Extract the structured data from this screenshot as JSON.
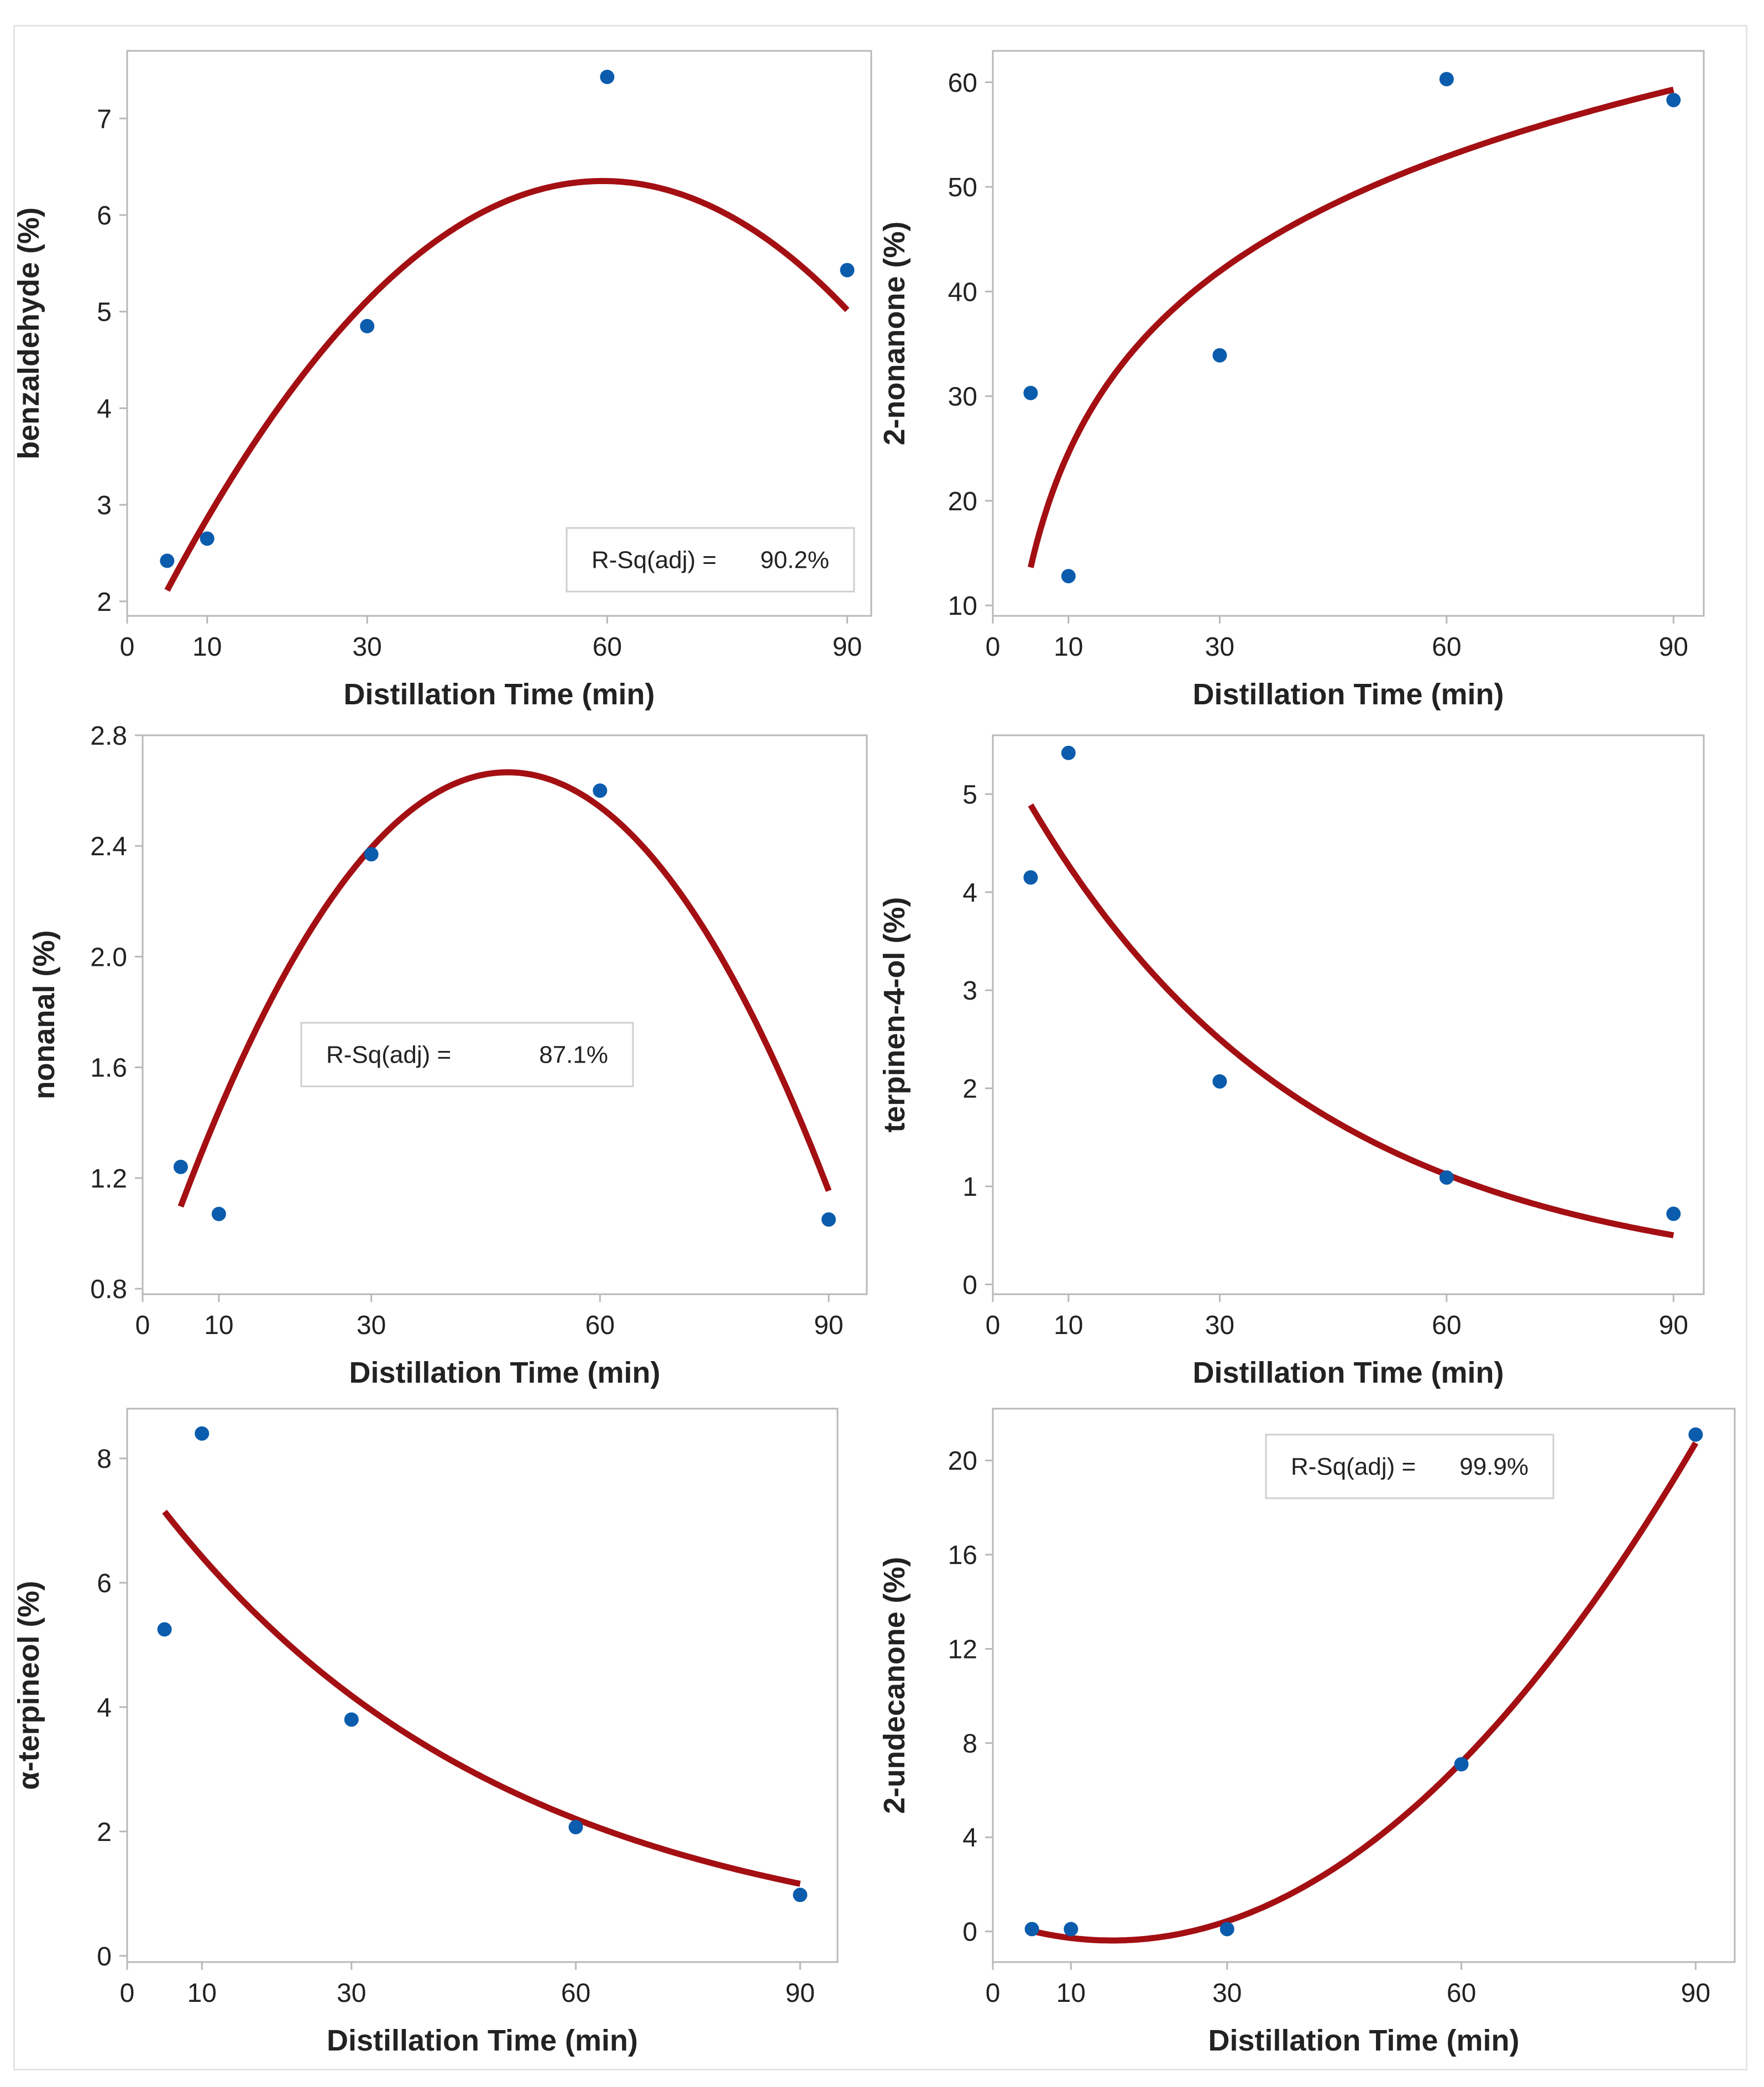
{
  "colors": {
    "fit_line": "#a30f12",
    "points": "#0b5cad",
    "axes": "#b8b8b8",
    "text": "#222222"
  },
  "chart_data": [
    {
      "type": "scatter",
      "title": "",
      "xlabel": "Distillation Time (min)",
      "ylabel": "benzaldehyde (%)",
      "xticks": [
        0,
        10,
        30,
        60,
        90
      ],
      "yticks": [
        2,
        3,
        4,
        5,
        6,
        7
      ],
      "xlim": [
        0,
        93
      ],
      "ylim": [
        1.85,
        7.7
      ],
      "points": {
        "x": [
          5,
          10,
          30,
          60,
          90
        ],
        "y": [
          2.42,
          2.65,
          4.85,
          7.43,
          5.43
        ]
      },
      "fit": {
        "model": "quadratic",
        "coef": [
          1.3,
          0.17,
          -0.00143
        ],
        "x_range": [
          5,
          90
        ]
      },
      "annotation": {
        "label": "R-Sq(adj) =",
        "value": "90.2%"
      }
    },
    {
      "type": "scatter",
      "title": "",
      "xlabel": "Distillation Time (min)",
      "ylabel": "2-nonanone (%)",
      "xticks": [
        0,
        10,
        30,
        60,
        90
      ],
      "yticks": [
        10,
        20,
        30,
        40,
        50,
        60
      ],
      "xlim": [
        0,
        94
      ],
      "ylim": [
        9,
        63
      ],
      "points": {
        "x": [
          5,
          10,
          30,
          60,
          90
        ],
        "y": [
          30.3,
          12.8,
          33.9,
          60.3,
          58.3
        ]
      },
      "fit": {
        "model": "logarithmic",
        "coef": [
          -11.8,
          15.8
        ],
        "x_range": [
          5,
          90
        ]
      },
      "annotation": null
    },
    {
      "type": "scatter",
      "title": "",
      "xlabel": "Distillation Time (min)",
      "ylabel": "nonanal (%)",
      "xticks": [
        0,
        10,
        30,
        60,
        90
      ],
      "yticks": [
        0.8,
        1.2,
        1.6,
        2.0,
        2.4,
        2.8
      ],
      "ytick_labels": [
        "0.8",
        "1.2",
        "1.6",
        "2.0",
        "2.4",
        "2.8"
      ],
      "xlim": [
        0,
        95
      ],
      "ylim": [
        0.78,
        2.8
      ],
      "points": {
        "x": [
          5,
          10,
          30,
          60,
          90
        ],
        "y": [
          1.24,
          1.07,
          2.37,
          2.6,
          1.05
        ]
      },
      "fit": {
        "model": "quadratic",
        "coef": [
          0.71,
          0.0817,
          -0.000853
        ],
        "x_range": [
          5,
          90
        ]
      },
      "annotation": {
        "label": "R-Sq(adj) =",
        "value": "87.1%"
      }
    },
    {
      "type": "scatter",
      "title": "",
      "xlabel": "Distillation Time (min)",
      "ylabel": "terpinen-4-ol (%)",
      "xticks": [
        0,
        10,
        30,
        60,
        90
      ],
      "yticks": [
        0,
        1,
        2,
        3,
        4,
        5
      ],
      "xlim": [
        0,
        94
      ],
      "ylim": [
        -0.1,
        5.6
      ],
      "points": {
        "x": [
          5,
          10,
          30,
          60,
          90
        ],
        "y": [
          4.15,
          5.42,
          2.07,
          1.09,
          0.72
        ]
      },
      "fit": {
        "model": "exponential",
        "coef": [
          5.59,
          -0.0268
        ],
        "x_range": [
          5,
          90
        ]
      },
      "annotation": null
    },
    {
      "type": "scatter",
      "title": "",
      "xlabel": "Distillation Time (min)",
      "ylabel": "α-terpineol (%)",
      "xticks": [
        0,
        10,
        30,
        60,
        90
      ],
      "yticks": [
        0,
        2,
        4,
        6,
        8
      ],
      "xlim": [
        0,
        95
      ],
      "ylim": [
        -0.1,
        8.8
      ],
      "points": {
        "x": [
          5,
          10,
          30,
          60,
          90
        ],
        "y": [
          5.25,
          8.4,
          3.8,
          2.07,
          0.98
        ]
      },
      "fit": {
        "model": "exponential",
        "coef": [
          7.95,
          -0.0214
        ],
        "x_range": [
          5,
          90
        ]
      },
      "annotation": null
    },
    {
      "type": "scatter",
      "title": "",
      "xlabel": "Distillation Time (min)",
      "ylabel": "2-undecanone (%)",
      "xticks": [
        0,
        10,
        30,
        60,
        90
      ],
      "yticks": [
        0,
        4,
        8,
        12,
        16,
        20
      ],
      "xlim": [
        0,
        95
      ],
      "ylim": [
        -1.3,
        22.2
      ],
      "points": {
        "x": [
          5,
          10,
          30,
          60,
          90
        ],
        "y": [
          0.1,
          0.1,
          0.1,
          7.1,
          21.1
        ]
      },
      "fit": {
        "model": "quadratic",
        "coef": [
          0.5,
          -0.1157,
          0.003785
        ],
        "x_range": [
          5,
          90
        ]
      },
      "annotation": {
        "label": "R-Sq(adj) =",
        "value": "99.9%"
      }
    }
  ]
}
